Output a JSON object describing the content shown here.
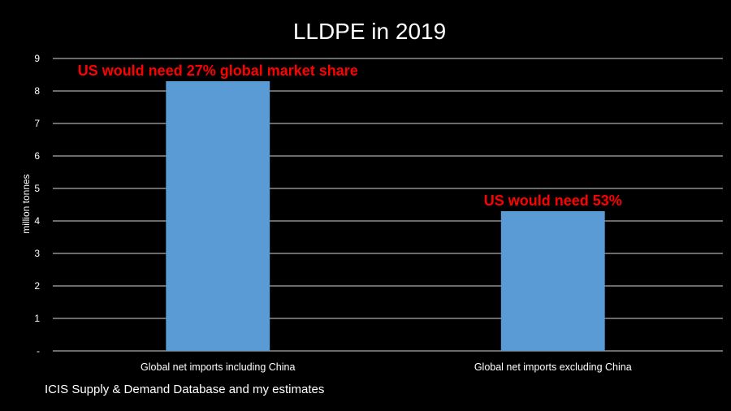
{
  "chart_data": {
    "type": "bar",
    "title": "LLDPE in 2019",
    "ylabel": "million tonnes",
    "xlabel": "",
    "categories": [
      "Global net imports including China",
      "Global net imports excluding China"
    ],
    "values": [
      8.3,
      4.3
    ],
    "ylim": [
      0,
      9
    ],
    "yticks": [
      "-",
      "1",
      "2",
      "3",
      "4",
      "5",
      "6",
      "7",
      "8",
      "9"
    ],
    "grid": true,
    "legend": "none",
    "annotations": [
      "US would need 27% global market share",
      "US would need 53%"
    ]
  },
  "colors": {
    "background": "#000000",
    "bar": "#5b9bd5",
    "annotation": "#ff0000",
    "text": "#ffffff",
    "gridline": "#d9d9d9"
  },
  "source_note": "ICIS Supply & Demand Database and my estimates"
}
